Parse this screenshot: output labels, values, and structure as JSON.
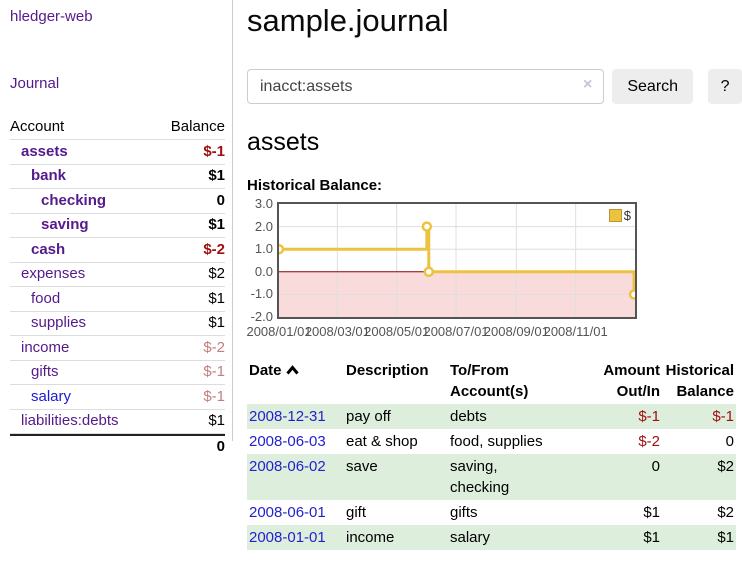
{
  "app": {
    "name": "hledger-web"
  },
  "colors": {
    "link_purple": "#551a8b",
    "link_blue": "#1a1ad6",
    "negative_strong": "#a01010",
    "negative_muted": "#c17f7f",
    "row_stripe_green": "#ddeedd",
    "chart_line": "#edc240",
    "chart_negative_fill": "#f9dbdb",
    "chart_zero_line": "#8b0000"
  },
  "sidebar": {
    "nav_journal": "Journal",
    "accounts_table": {
      "col_account": "Account",
      "col_balance": "Balance",
      "rows": [
        {
          "name": "assets",
          "balance": "$-1"
        },
        {
          "name": "bank",
          "balance": "$1"
        },
        {
          "name": "checking",
          "balance": "0"
        },
        {
          "name": "saving",
          "balance": "$1"
        },
        {
          "name": "cash",
          "balance": "$-2"
        },
        {
          "name": "expenses",
          "balance": "$2"
        },
        {
          "name": "food",
          "balance": "$1"
        },
        {
          "name": "supplies",
          "balance": "$1"
        },
        {
          "name": "income",
          "balance": "$-2"
        },
        {
          "name": "gifts",
          "balance": "$-1"
        },
        {
          "name": "salary",
          "balance": "$-1"
        },
        {
          "name": "liabilities:debts",
          "balance": "$1"
        }
      ],
      "total": "0"
    }
  },
  "header": {
    "title": "sample.journal"
  },
  "search": {
    "value": "inacct:assets",
    "clear_icon": "×",
    "button_label": "Search",
    "help_label": "?"
  },
  "account_page": {
    "heading": "assets",
    "chart_label": "Historical Balance:"
  },
  "chart_data": {
    "type": "line",
    "title": "Historical Balance",
    "step": true,
    "series": [
      {
        "name": "$",
        "color": "#edc240",
        "points": [
          [
            "2008-01-01",
            1
          ],
          [
            "2008-06-01",
            2
          ],
          [
            "2008-06-03",
            0
          ],
          [
            "2008-12-31",
            -1
          ]
        ]
      }
    ],
    "x_ticks": [
      "2008/01/01",
      "2008/03/01",
      "2008/05/01",
      "2008/07/01",
      "2008/09/01",
      "2008/11/01"
    ],
    "y_ticks": [
      3.0,
      2.0,
      1.0,
      0.0,
      -1.0,
      -2.0
    ],
    "ylim": [
      -2,
      3
    ],
    "xrange": [
      "2008-01-01",
      "2009-01-01"
    ],
    "grid": true,
    "legend_position": "top-right",
    "zero_line_color": "#8b0000",
    "negative_fill": "#f9dbdb"
  },
  "transactions": {
    "headers": {
      "date": "Date",
      "description": "Description",
      "account": [
        "To/From",
        "Account(s)"
      ],
      "amount": [
        "Amount",
        "Out/In"
      ],
      "balance": [
        "Historical",
        "Balance"
      ]
    },
    "rows": [
      {
        "date": "2008-12-31",
        "description": "pay off",
        "accounts": [
          "debts"
        ],
        "amount": "$-1",
        "balance": "$-1"
      },
      {
        "date": "2008-06-03",
        "description": "eat & shop",
        "accounts": [
          "food, supplies"
        ],
        "amount": "$-2",
        "balance": "0"
      },
      {
        "date": "2008-06-02",
        "description": "save",
        "accounts": [
          "saving,",
          "checking"
        ],
        "amount": "0",
        "balance": "$2"
      },
      {
        "date": "2008-06-01",
        "description": "gift",
        "accounts": [
          "gifts"
        ],
        "amount": "$1",
        "balance": "$2"
      },
      {
        "date": "2008-01-01",
        "description": "income",
        "accounts": [
          "salary"
        ],
        "amount": "$1",
        "balance": "$1"
      }
    ]
  }
}
